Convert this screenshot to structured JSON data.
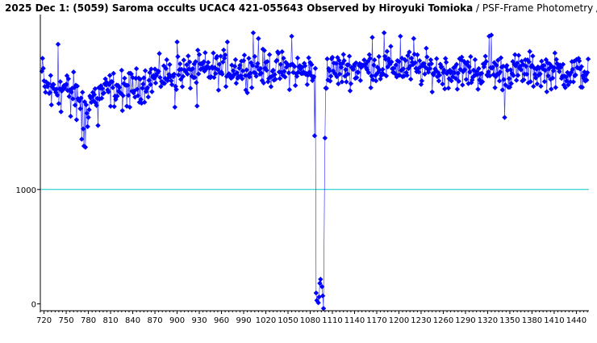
{
  "title": {
    "main": "2025 Dec 1: (5059) Saroma occults UCAC4 421-055643 Observed by Hiroyuki Tomioka",
    "sub": " / PSF-Frame Photometry /"
  },
  "colors": {
    "series": "#0000ff",
    "reference_line": "#00cccc",
    "axis": "#000000"
  },
  "chart_data": {
    "type": "line",
    "title": "2025 Dec 1: (5059) Saroma occults UCAC4 421-055643 Observed by Hiroyuki Tomioka / PSF-Frame Photometry /",
    "xlabel": "",
    "ylabel": "",
    "xlim": [
      715,
      1457
    ],
    "ylim": [
      -60,
      2530
    ],
    "x_ticks": [
      720,
      750,
      780,
      810,
      840,
      870,
      900,
      930,
      960,
      990,
      1020,
      1050,
      1080,
      1110,
      1140,
      1170,
      1200,
      1230,
      1260,
      1290,
      1320,
      1350,
      1380,
      1410,
      1440
    ],
    "y_ticks": [
      0,
      1000
    ],
    "reference_line": 1000,
    "grid": false,
    "marker": "diamond",
    "occultation": {
      "start": 1088,
      "end": 1100,
      "bottom_x": [
        1088,
        1089,
        1091,
        1092,
        1093,
        1094,
        1096,
        1097,
        1098
      ],
      "bottom_y": [
        95,
        30,
        10,
        60,
        180,
        215,
        150,
        70,
        -40
      ],
      "ingress_x": 1086,
      "ingress_y": 1470,
      "egress_x": 1100,
      "egress_y": 1450
    },
    "baseline": [
      [
        720,
        1890
      ],
      [
        735,
        1895
      ],
      [
        750,
        1880
      ],
      [
        760,
        1860
      ],
      [
        770,
        1780
      ],
      [
        777,
        1740
      ],
      [
        785,
        1800
      ],
      [
        800,
        1850
      ],
      [
        815,
        1880
      ],
      [
        830,
        1880
      ],
      [
        845,
        1900
      ],
      [
        870,
        1980
      ],
      [
        900,
        2020
      ],
      [
        930,
        2040
      ],
      [
        960,
        2050
      ],
      [
        1000,
        2060
      ],
      [
        1040,
        2050
      ],
      [
        1080,
        2030
      ],
      [
        1085,
        2020
      ],
      [
        1101,
        2020
      ],
      [
        1110,
        2040
      ],
      [
        1140,
        2060
      ],
      [
        1180,
        2080
      ],
      [
        1220,
        2060
      ],
      [
        1260,
        2040
      ],
      [
        1300,
        2030
      ],
      [
        1340,
        2030
      ],
      [
        1380,
        2040
      ],
      [
        1420,
        2030
      ],
      [
        1456,
        2020
      ]
    ],
    "scatter": 115,
    "dips": [
      {
        "x": 771,
        "y": 1440
      },
      {
        "x": 774,
        "y": 1380
      },
      {
        "x": 776,
        "y": 1370
      },
      {
        "x": 773,
        "y": 1530
      },
      {
        "x": 779,
        "y": 1550
      },
      {
        "x": 764,
        "y": 1610
      },
      {
        "x": 793,
        "y": 1560
      },
      {
        "x": 730,
        "y": 1740
      },
      {
        "x": 743,
        "y": 1680
      },
      {
        "x": 756,
        "y": 1640
      },
      {
        "x": 1343,
        "y": 1630
      },
      {
        "x": 897,
        "y": 1720
      },
      {
        "x": 927,
        "y": 1730
      },
      {
        "x": 826,
        "y": 1690
      },
      {
        "x": 836,
        "y": 1720
      }
    ],
    "peaks": [
      {
        "x": 1003,
        "y": 2370
      },
      {
        "x": 1180,
        "y": 2370
      },
      {
        "x": 1325,
        "y": 2350
      },
      {
        "x": 1322,
        "y": 2340
      },
      {
        "x": 1164,
        "y": 2330
      },
      {
        "x": 1055,
        "y": 2340
      },
      {
        "x": 1010,
        "y": 2320
      },
      {
        "x": 1202,
        "y": 2340
      },
      {
        "x": 1220,
        "y": 2320
      },
      {
        "x": 739,
        "y": 2270
      },
      {
        "x": 900,
        "y": 2290
      },
      {
        "x": 968,
        "y": 2290
      }
    ],
    "sample_step": 1
  }
}
